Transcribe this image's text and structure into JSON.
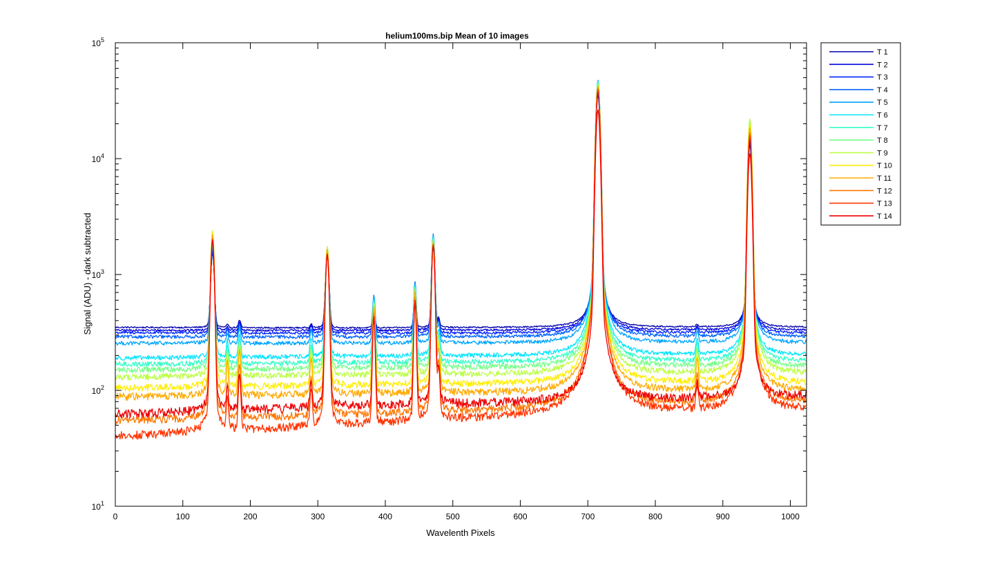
{
  "chart_data": {
    "type": "line",
    "title": "helium100ms.bip  Mean of 10 images",
    "xlabel": "Wavelenth Pixels",
    "ylabel": "Signal (ADU) - dark subtracted",
    "xlim": [
      0,
      1024
    ],
    "ylim": [
      10,
      100000
    ],
    "yscale": "log",
    "x_ticks": [
      0,
      100,
      200,
      300,
      400,
      500,
      600,
      700,
      800,
      900,
      1000
    ],
    "y_ticks": [
      {
        "value": 10,
        "base": "10",
        "exp": "1"
      },
      {
        "value": 100,
        "base": "10",
        "exp": "2"
      },
      {
        "value": 1000,
        "base": "10",
        "exp": "3"
      },
      {
        "value": 10000,
        "base": "10",
        "exp": "4"
      },
      {
        "value": 100000,
        "base": "10",
        "exp": "5"
      }
    ],
    "legend_position": "outside-top-right",
    "peaks": [
      {
        "x": 144,
        "w": 2.2
      },
      {
        "x": 166,
        "w": 1.3
      },
      {
        "x": 184,
        "w": 1.6
      },
      {
        "x": 290,
        "w": 1.5
      },
      {
        "x": 314,
        "w": 2.2
      },
      {
        "x": 383,
        "w": 1.6
      },
      {
        "x": 444,
        "w": 1.6
      },
      {
        "x": 471,
        "w": 2.0
      },
      {
        "x": 479,
        "w": 1.6
      },
      {
        "x": 715,
        "w": 2.6
      },
      {
        "x": 862,
        "w": 1.6
      },
      {
        "x": 940,
        "w": 2.4
      }
    ],
    "series": [
      {
        "name": "T 1",
        "color": "#0000ad",
        "baseline": [
          350,
          345,
          350,
          350
        ],
        "peaks": [
          1700,
          370,
          410,
          380,
          1700,
          560,
          780,
          2000,
          420,
          40000,
          370,
          15000
        ]
      },
      {
        "name": "T 2",
        "color": "#0000d6",
        "baseline": [
          330,
          328,
          330,
          330
        ],
        "peaks": [
          1750,
          360,
          400,
          370,
          1700,
          580,
          800,
          2050,
          410,
          42000,
          360,
          16000
        ]
      },
      {
        "name": "T 3",
        "color": "#0022ff",
        "baseline": [
          315,
          310,
          312,
          312
        ],
        "peaks": [
          1800,
          350,
          390,
          360,
          1750,
          600,
          830,
          2100,
          400,
          44000,
          350,
          17000
        ]
      },
      {
        "name": "T 4",
        "color": "#0064ff",
        "baseline": [
          290,
          288,
          290,
          290
        ],
        "peaks": [
          1900,
          340,
          380,
          350,
          1800,
          720,
          950,
          2500,
          390,
          52000,
          340,
          19000
        ]
      },
      {
        "name": "T 5",
        "color": "#00a5ff",
        "baseline": [
          255,
          255,
          256,
          258
        ],
        "peaks": [
          2000,
          320,
          360,
          330,
          1850,
          700,
          920,
          2450,
          370,
          54000,
          320,
          21000
        ]
      },
      {
        "name": "T 6",
        "color": "#00e5ff",
        "baseline": [
          190,
          195,
          200,
          202
        ],
        "peaks": [
          2100,
          280,
          320,
          290,
          1900,
          680,
          900,
          2400,
          340,
          53000,
          290,
          22000
        ]
      },
      {
        "name": "T 7",
        "color": "#33ffc8",
        "baseline": [
          168,
          172,
          176,
          178
        ],
        "peaks": [
          2200,
          250,
          290,
          260,
          1950,
          660,
          880,
          2350,
          310,
          52000,
          260,
          23000
        ]
      },
      {
        "name": "T 8",
        "color": "#77ff88",
        "baseline": [
          150,
          155,
          158,
          160
        ],
        "peaks": [
          2400,
          235,
          280,
          245,
          1950,
          640,
          860,
          2300,
          290,
          51000,
          240,
          24000
        ]
      },
      {
        "name": "T 9",
        "color": "#bbff44",
        "baseline": [
          130,
          135,
          138,
          140
        ],
        "peaks": [
          2700,
          220,
          270,
          230,
          1950,
          620,
          840,
          2250,
          270,
          50000,
          225,
          25000
        ]
      },
      {
        "name": "T 10",
        "color": "#ffee00",
        "baseline": [
          105,
          110,
          114,
          116
        ],
        "peaks": [
          2600,
          200,
          250,
          210,
          1900,
          600,
          800,
          2200,
          250,
          49000,
          210,
          22000
        ]
      },
      {
        "name": "T 11",
        "color": "#ffaa00",
        "baseline": [
          88,
          92,
          96,
          98
        ],
        "peaks": [
          2500,
          185,
          240,
          195,
          1850,
          580,
          780,
          2150,
          235,
          48000,
          195,
          21000
        ]
      },
      {
        "name": "T 12",
        "color": "#ff7700",
        "baseline": [
          55,
          60,
          70,
          80
        ],
        "peaks": [
          2300,
          120,
          180,
          140,
          1700,
          520,
          700,
          2050,
          180,
          46000,
          140,
          19000
        ]
      },
      {
        "name": "T 13",
        "color": "#ff3300",
        "baseline": [
          40,
          50,
          62,
          68
        ],
        "peaks": [
          2200,
          95,
          150,
          110,
          1650,
          480,
          640,
          2000,
          150,
          45000,
          110,
          18000
        ]
      },
      {
        "name": "T 14",
        "color": "#ee0000",
        "baseline": [
          62,
          72,
          80,
          88
        ],
        "peaks": [
          2250,
          110,
          150,
          120,
          1700,
          480,
          660,
          2050,
          160,
          30000,
          120,
          12500
        ]
      }
    ]
  }
}
